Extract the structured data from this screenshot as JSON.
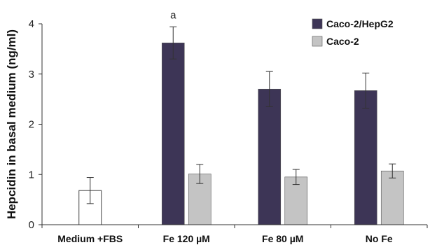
{
  "chart_data": {
    "type": "bar",
    "ylabel": "Hepcidin in basal medium (ng/ml)",
    "ylim": [
      0,
      4
    ],
    "yticks": [
      "0",
      "1",
      "2",
      "3",
      "4"
    ],
    "categories": [
      "Medium +FBS",
      "Fe 120 µM",
      "Fe 80 µM",
      "No Fe"
    ],
    "control": {
      "category_index": 0,
      "value": 0.68,
      "error": 0.26,
      "color": "#ffffff"
    },
    "series": [
      {
        "name": "Caco-2/HepG2",
        "color": "#3d3556",
        "values": [
          null,
          3.62,
          2.7,
          2.67
        ],
        "errors": [
          null,
          0.32,
          0.35,
          0.35
        ]
      },
      {
        "name": "Caco-2",
        "color": "#c4c4c4",
        "values": [
          null,
          1.01,
          0.95,
          1.07
        ],
        "errors": [
          null,
          0.19,
          0.15,
          0.14
        ]
      }
    ],
    "annotations": [
      {
        "text": "a",
        "category_index": 1
      }
    ],
    "legend_position": "top-right",
    "grid": false
  }
}
